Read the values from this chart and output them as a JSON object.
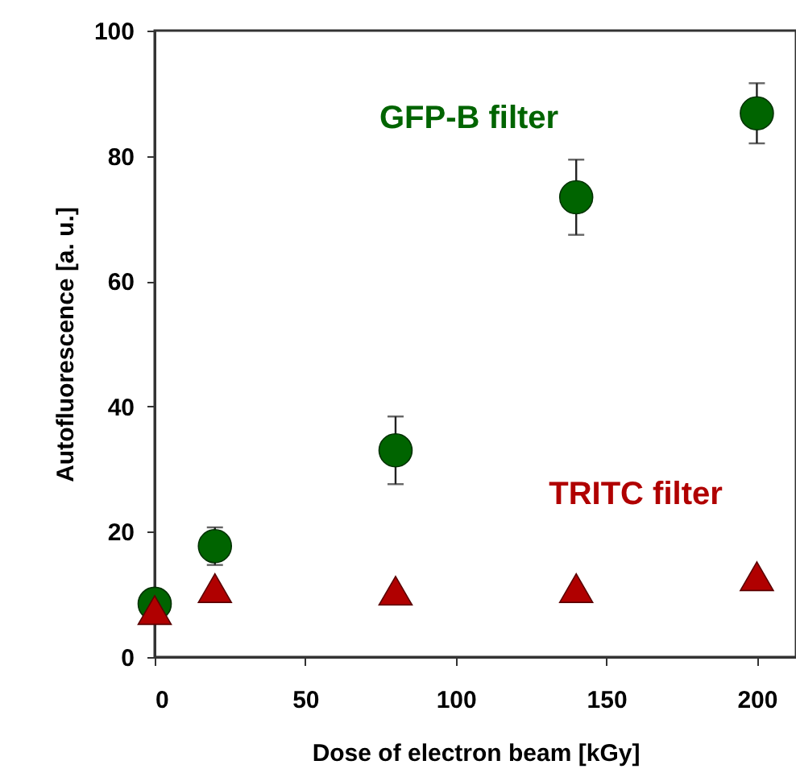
{
  "chart_data": {
    "type": "scatter",
    "xlabel": "Dose of electron  beam    [kGy]",
    "ylabel": "Autofluorescence     [a. u.]",
    "xlim": [
      0,
      213
    ],
    "xticks": [
      0,
      50,
      100,
      150,
      200
    ],
    "ylim": [
      0,
      100
    ],
    "yticks": [
      0,
      20,
      40,
      60,
      80,
      100
    ],
    "grid": false,
    "series": [
      {
        "name": "GFP-B filter",
        "color": "#006400",
        "marker": "circle",
        "x": [
          0,
          20,
          80,
          140,
          200
        ],
        "values": [
          8.5,
          17.7,
          33,
          73.4,
          86.8
        ],
        "errors": [
          null,
          3,
          5.4,
          6,
          4.8
        ]
      },
      {
        "name": "TRITC filter",
        "color": "#b00000",
        "marker": "triangle",
        "x": [
          0,
          20,
          80,
          140,
          200
        ],
        "values": [
          7.5,
          11,
          10.6,
          11,
          12.9
        ]
      }
    ]
  }
}
